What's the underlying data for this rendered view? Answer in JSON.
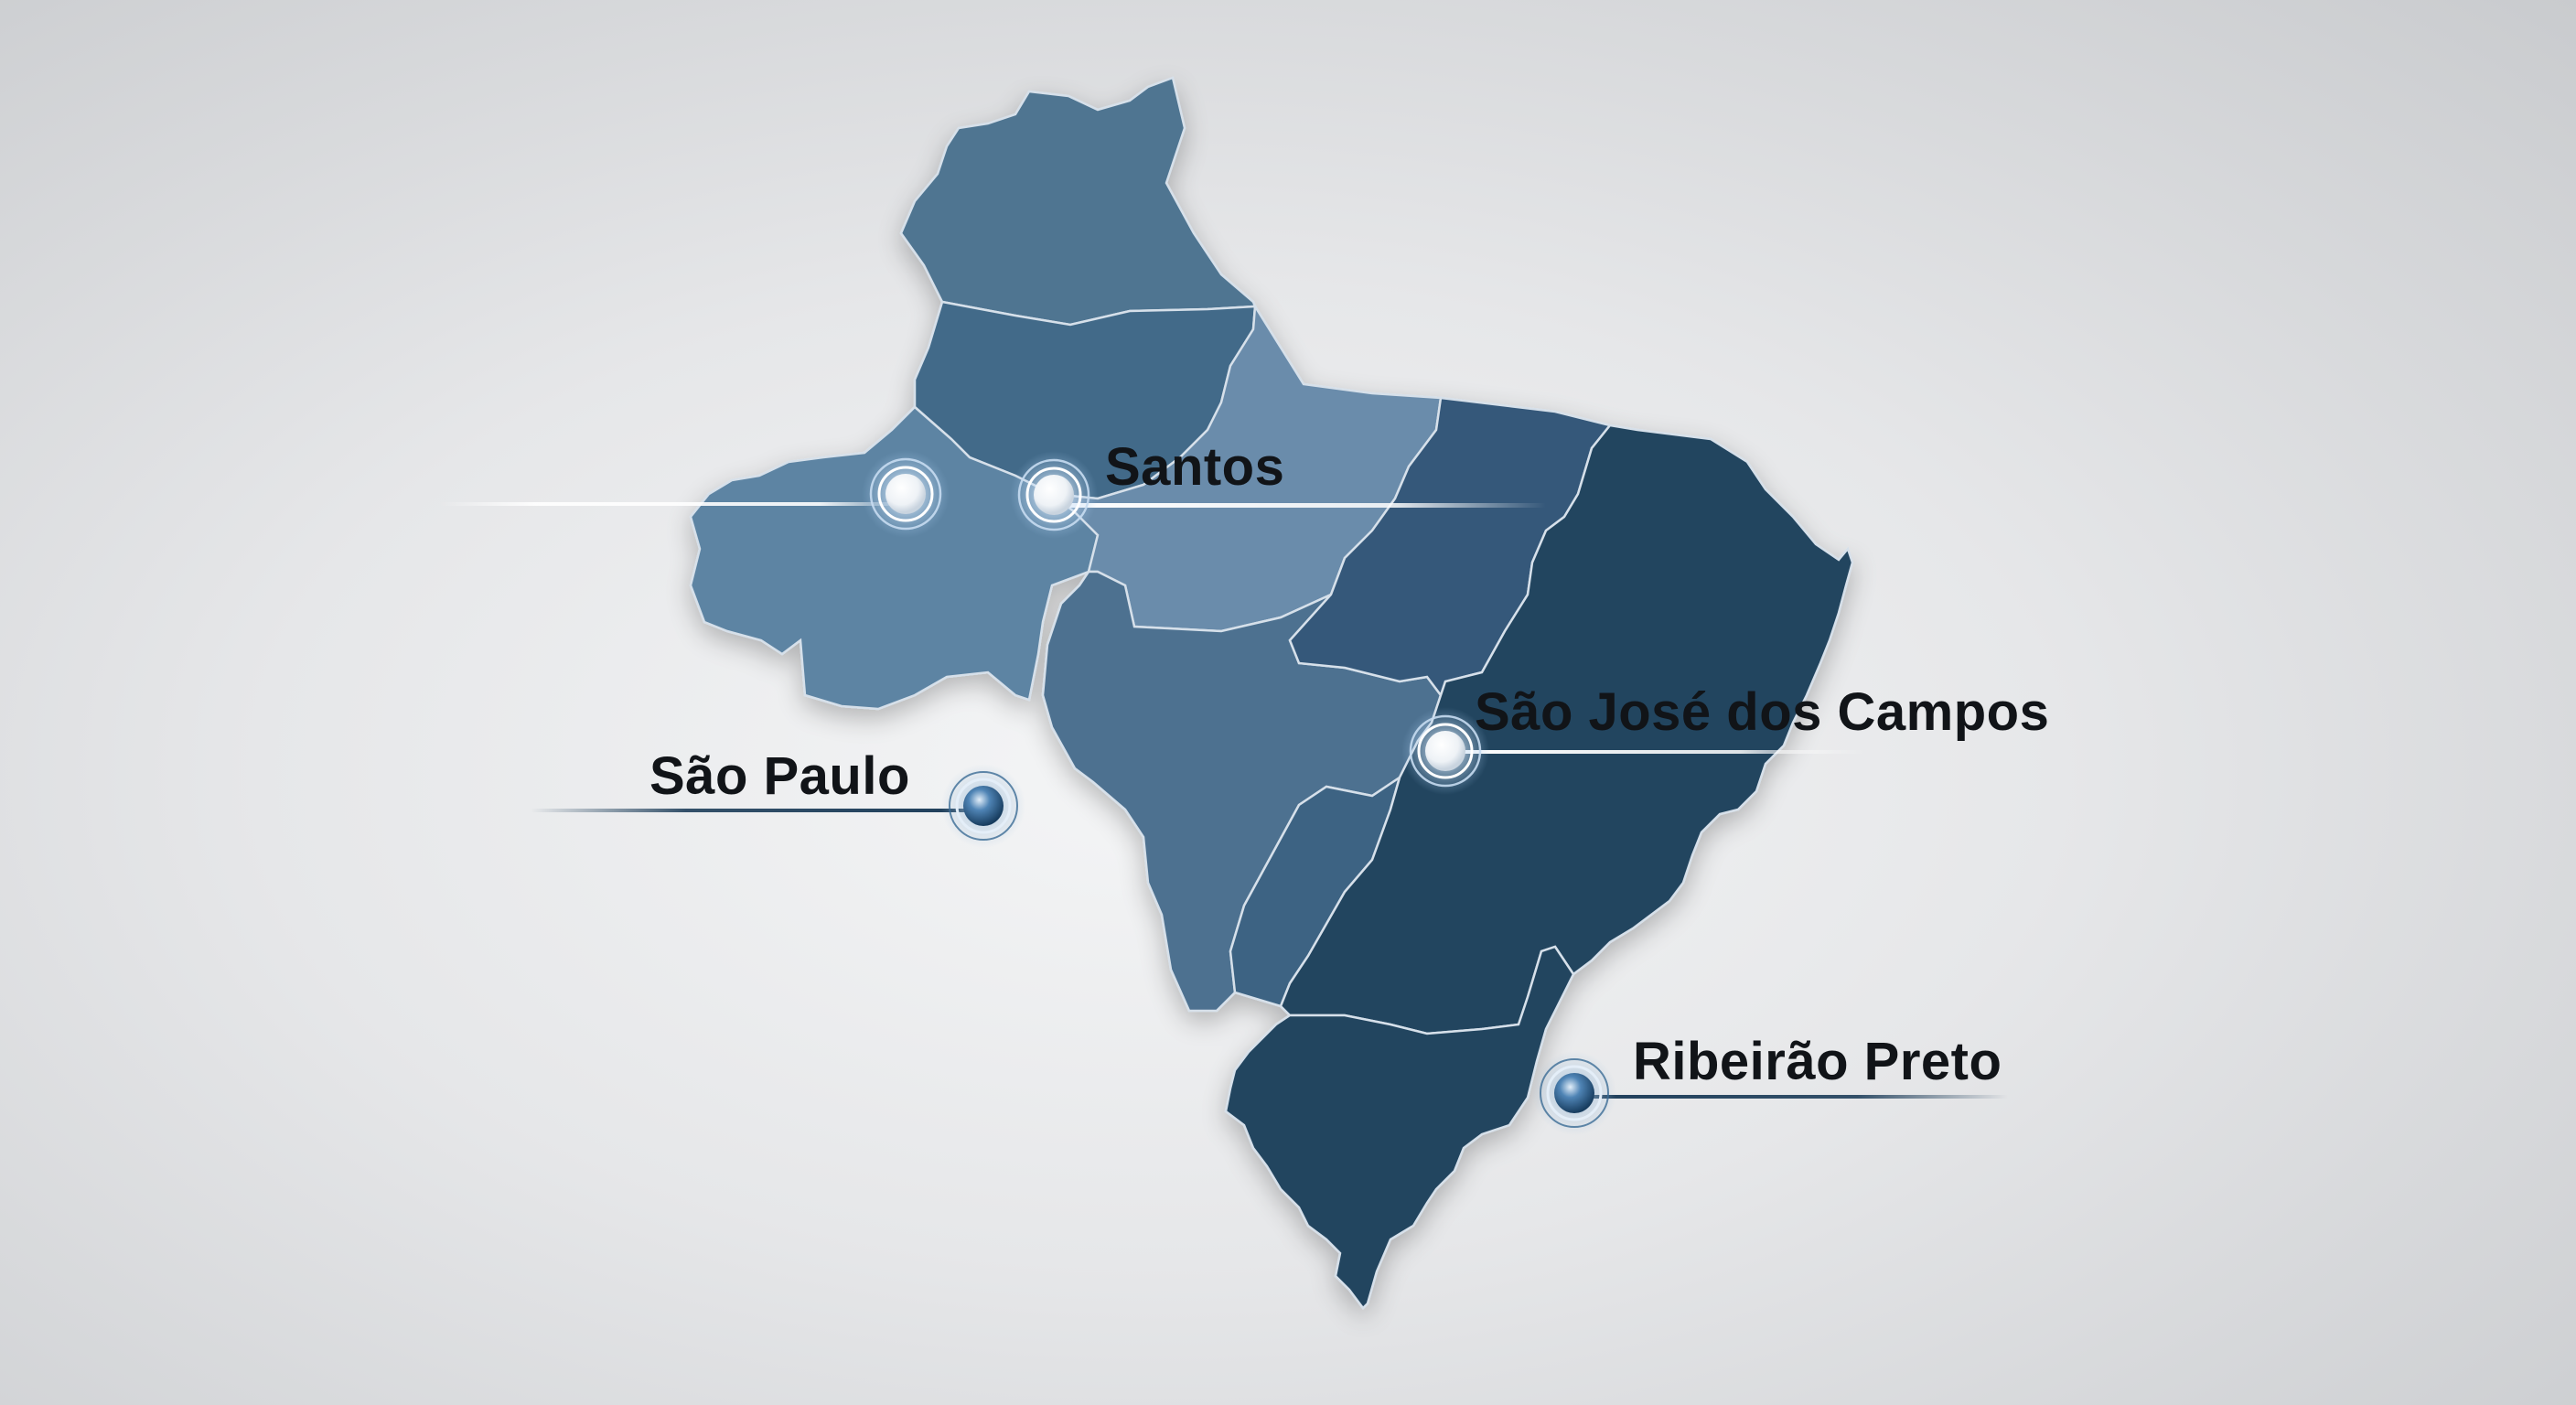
{
  "colors": {
    "region_light": "#6a8cab",
    "region_mid": "#4d7190",
    "region_dark": "#23445f",
    "border": "#d6e0ea",
    "marker_light": "#ffffff",
    "marker_dark": "#1d4a72",
    "leader_light": "#f4f8fc",
    "leader_dark": "#1f3f5b"
  },
  "cities": [
    {
      "id": "santos",
      "label": "Santos",
      "marker_style": "light",
      "icon": "location-marker-icon"
    },
    {
      "id": "sao-jose-dos-campos",
      "label": "São José dos Campos",
      "marker_style": "light",
      "icon": "location-marker-icon"
    },
    {
      "id": "sao-paulo",
      "label": "São Paulo",
      "marker_style": "dark",
      "icon": "location-marker-icon"
    },
    {
      "id": "ribeirao-preto",
      "label": "Ribeirão Preto",
      "marker_style": "dark",
      "icon": "location-marker-icon"
    }
  ],
  "unlabeled_markers": [
    {
      "id": "west-marker",
      "marker_style": "light",
      "icon": "location-marker-icon"
    }
  ]
}
